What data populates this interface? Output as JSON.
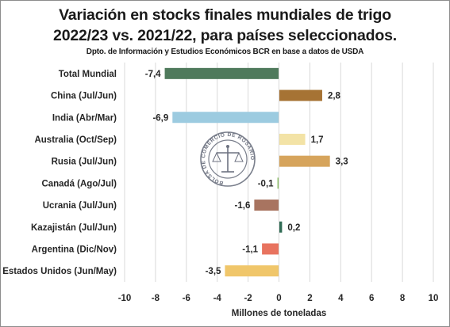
{
  "title_line1": "Variación en stocks finales mundiales de trigo",
  "title_line2": "2022/23 vs. 2021/22, para países seleccionados.",
  "subtitle": "Dpto. de Información y Estudios Económicos BCR en base a datos de USDA",
  "seal": {
    "icon": "bolsa-de-comercio-de-rosario-seal",
    "text": "BOLSA DE COMERCIO DE ROSARIO"
  },
  "chart_data": {
    "type": "bar",
    "orientation": "horizontal",
    "title": "Variación en stocks finales mundiales de trigo 2022/23 vs. 2021/22, para países seleccionados.",
    "xlabel": "Millones de toneladas",
    "ylabel": "",
    "xlim": [
      -10,
      10
    ],
    "xticks": [
      "-10",
      "-8",
      "-6",
      "-4",
      "-2",
      "0",
      "2",
      "4",
      "6",
      "8",
      "10"
    ],
    "grid": "vertical",
    "categories": [
      "Total Mundial",
      "China (Jul/Jun)",
      "India (Abr/Mar)",
      "Australia (Oct/Sep)",
      "Rusia (Jul/Jun)",
      "Canadá (Ago/Jul)",
      "Ucrania (Jul/Jun)",
      "Kazajistán (Jul/Jun)",
      "Argentina (Dic/Nov)",
      "Estados Unidos (Jun/May)"
    ],
    "values": [
      -7.4,
      2.8,
      -6.9,
      1.7,
      3.3,
      -0.1,
      -1.6,
      0.2,
      -1.1,
      -3.5
    ],
    "value_labels": [
      "-7,4",
      "2,8",
      "-6,9",
      "1,7",
      "3,3",
      "-0,1",
      "-1,6",
      "0,2",
      "-1,1",
      "-3,5"
    ],
    "colors": [
      "#4f7a5c",
      "#a67334",
      "#9ccbe0",
      "#f3e3a6",
      "#d6a45c",
      "#8fc06a",
      "#a87460",
      "#2f6b54",
      "#e8735f",
      "#f0c66a"
    ]
  }
}
